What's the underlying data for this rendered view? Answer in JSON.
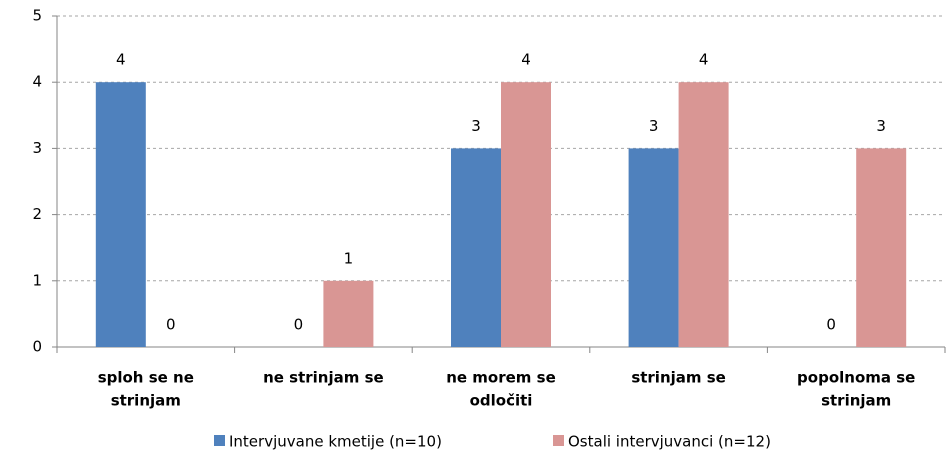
{
  "chart_data": {
    "type": "bar",
    "categories": [
      [
        "sploh se ne",
        "strinjam"
      ],
      [
        "ne strinjam se"
      ],
      [
        "ne morem se",
        "odločiti"
      ],
      [
        "strinjam se"
      ],
      [
        "popolnoma se",
        "strinjam"
      ]
    ],
    "series": [
      {
        "name": "Intervjuvane kmetije (n=10)",
        "color": "#4f81bd",
        "values": [
          4,
          0,
          3,
          3,
          0
        ]
      },
      {
        "name": "Ostali intervjuvanci (n=12)",
        "color": "#d99694",
        "values": [
          0,
          1,
          4,
          4,
          3
        ]
      }
    ],
    "ylim": [
      0,
      5
    ],
    "yticks": [
      0,
      1,
      2,
      3,
      4,
      5
    ],
    "grid": true,
    "legend": "bottom"
  }
}
